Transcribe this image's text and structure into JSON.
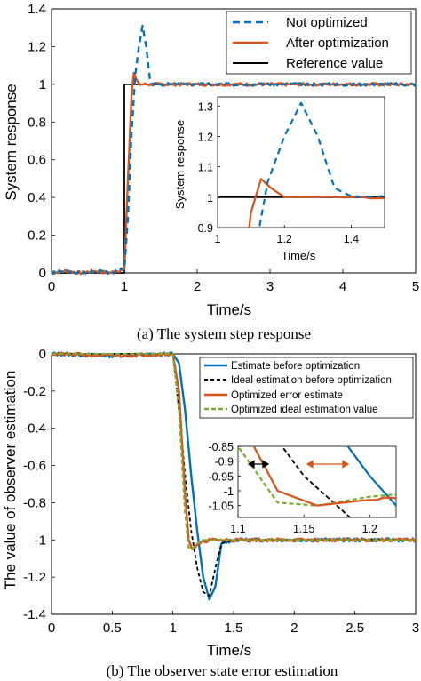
{
  "chart_data": [
    {
      "type": "line",
      "caption": "(a) The system step response",
      "xlabel": "Time/s",
      "ylabel": "System response",
      "xlim": [
        0,
        5
      ],
      "ylim": [
        0,
        1.4
      ],
      "xticks": [
        "0",
        "1",
        "2",
        "3",
        "4",
        "5"
      ],
      "yticks": [
        "0",
        "0.2",
        "0.4",
        "0.6",
        "0.8",
        "1",
        "1.2",
        "1.4"
      ],
      "legend_position": "top-right",
      "series": [
        {
          "name": "Not optimized",
          "color": "#0072BD",
          "style": "dashed",
          "x": [
            0,
            0.2,
            0.4,
            0.6,
            0.8,
            1.0,
            1.05,
            1.1,
            1.15,
            1.2,
            1.25,
            1.3,
            1.35,
            1.4,
            1.5,
            2,
            3,
            4,
            5
          ],
          "y": [
            0,
            0.01,
            0,
            0.01,
            0,
            0.02,
            0.3,
            0.75,
            1.05,
            1.2,
            1.31,
            1.2,
            1.03,
            1.0,
            1.0,
            1.0,
            1.0,
            1.0,
            1.0
          ]
        },
        {
          "name": "After optimization",
          "color": "#D95319",
          "style": "solid",
          "x": [
            0,
            0.2,
            0.4,
            0.6,
            0.8,
            1.0,
            1.05,
            1.1,
            1.13,
            1.16,
            1.2,
            1.3,
            1.5,
            2,
            3,
            4,
            5
          ],
          "y": [
            0,
            0.01,
            0,
            0.01,
            0,
            0.02,
            0.5,
            0.95,
            1.06,
            1.03,
            1.0,
            1.0,
            1.0,
            1.0,
            1.0,
            1.0,
            1.0
          ]
        },
        {
          "name": "Reference value",
          "color": "#000000",
          "style": "solid",
          "x": [
            0,
            1,
            1,
            5
          ],
          "y": [
            0,
            0,
            1,
            1
          ]
        }
      ],
      "inset": {
        "xlabel": "Time/s",
        "ylabel": "System response",
        "xlim": [
          1,
          1.5
        ],
        "ylim": [
          0.9,
          1.33
        ],
        "xticks": [
          "1",
          "1.2",
          "1.4"
        ],
        "yticks": [
          "0.9",
          "1",
          "1.1",
          "1.2",
          "1.3"
        ]
      }
    },
    {
      "type": "line",
      "caption": "(b) The observer state error estimation",
      "xlabel": "Time/s",
      "ylabel": "The value of observer estimation",
      "xlim": [
        0,
        3
      ],
      "ylim": [
        -1.4,
        0
      ],
      "xticks": [
        "0",
        "0.5",
        "1",
        "1.5",
        "2",
        "2.5",
        "3"
      ],
      "yticks": [
        "0",
        "-0.2",
        "-0.4",
        "-0.6",
        "-0.8",
        "-1",
        "-1.2",
        "-1.4"
      ],
      "legend_position": "top-right",
      "series": [
        {
          "name": "Estimate before optimization",
          "color": "#0072BD",
          "style": "solid",
          "x": [
            0,
            0.5,
            1.0,
            1.05,
            1.1,
            1.15,
            1.2,
            1.25,
            1.3,
            1.35,
            1.4,
            1.5,
            2,
            2.5,
            3
          ],
          "y": [
            0,
            -0.01,
            0,
            -0.05,
            -0.3,
            -0.65,
            -0.95,
            -1.2,
            -1.32,
            -1.25,
            -1.02,
            -1.0,
            -1.0,
            -1.0,
            -1.0
          ]
        },
        {
          "name": "Ideal estimation before optimization",
          "color": "#000000",
          "style": "dashed",
          "x": [
            0,
            0.5,
            1.0,
            1.05,
            1.1,
            1.15,
            1.2,
            1.25,
            1.3,
            1.35,
            1.4,
            1.5,
            2,
            2.5,
            3
          ],
          "y": [
            0,
            0,
            0,
            -0.3,
            -0.65,
            -0.95,
            -1.15,
            -1.28,
            -1.3,
            -1.15,
            -1.02,
            -1.0,
            -1.0,
            -1.0,
            -1.0
          ]
        },
        {
          "name": "Optimized error estimate",
          "color": "#D95319",
          "style": "solid",
          "x": [
            0,
            0.5,
            1.0,
            1.05,
            1.1,
            1.13,
            1.16,
            1.2,
            1.25,
            1.3,
            1.5,
            2,
            2.5,
            3
          ],
          "y": [
            0,
            -0.01,
            0,
            -0.2,
            -0.75,
            -1.0,
            -1.05,
            -1.03,
            -1.01,
            -1.0,
            -1.0,
            -1.0,
            -1.0,
            -1.0
          ]
        },
        {
          "name": "Optimized ideal estimation value",
          "color": "#77AC30",
          "style": "dashed",
          "x": [
            0,
            0.5,
            1.0,
            1.05,
            1.1,
            1.13,
            1.16,
            1.2,
            1.25,
            1.3,
            1.5,
            2,
            2.5,
            3
          ],
          "y": [
            0,
            0,
            0,
            -0.3,
            -0.85,
            -1.04,
            -1.05,
            -1.02,
            -1.0,
            -1.0,
            -1.0,
            -1.0,
            -1.0,
            -1.0
          ]
        }
      ],
      "inset": {
        "xlim": [
          1.1,
          1.22
        ],
        "ylim": [
          -1.09,
          -0.85
        ],
        "xticks": [
          "1.1",
          "1.15",
          "1.2"
        ],
        "yticks": [
          "-0.85",
          "-0.9",
          "-0.95",
          "-1",
          "-1.05"
        ]
      }
    }
  ]
}
